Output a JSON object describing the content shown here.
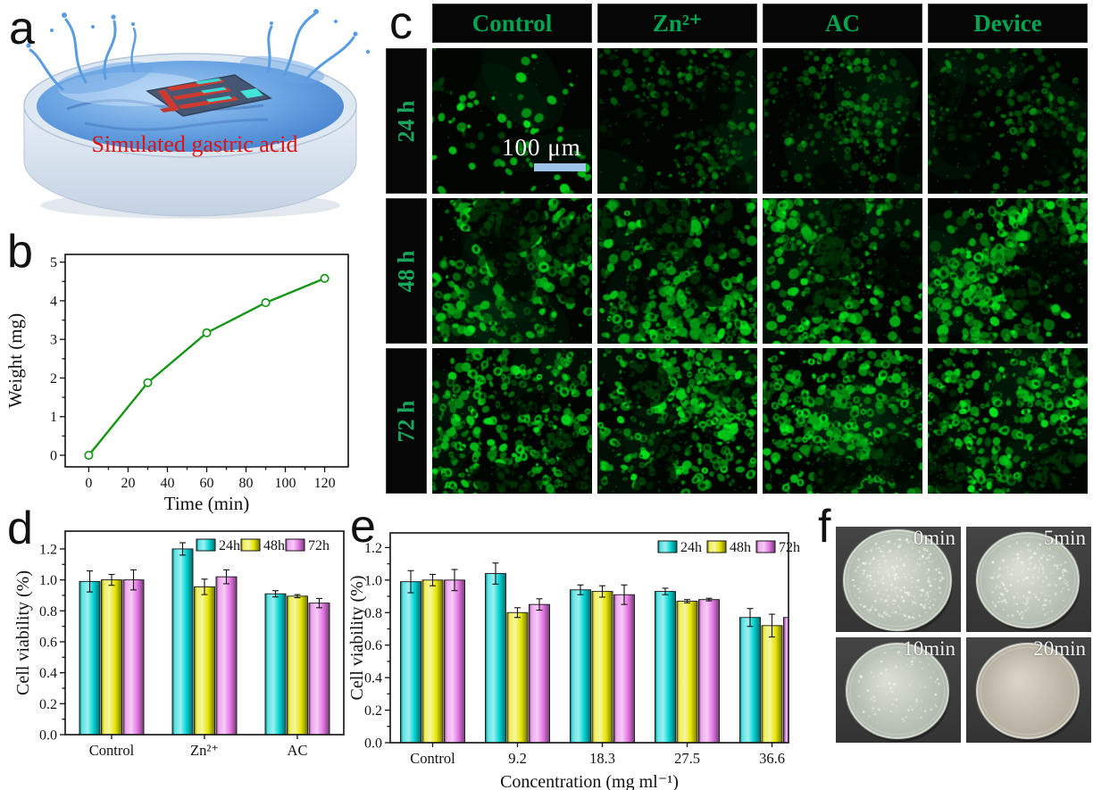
{
  "panels": {
    "a": {
      "label": "a",
      "caption": "Simulated gastric acid"
    },
    "b": {
      "label": "b"
    },
    "c": {
      "label": "c",
      "columns": [
        "Control",
        "Zn²⁺",
        "AC",
        "Device"
      ],
      "rows": [
        "24 h",
        "48 h",
        "72 h"
      ],
      "scale_bar": "100 μm"
    },
    "d": {
      "label": "d"
    },
    "e": {
      "label": "e"
    },
    "f": {
      "label": "f",
      "images": [
        "0min",
        "5min",
        "10min",
        "20min"
      ]
    }
  },
  "chart_data": [
    {
      "id": "b",
      "type": "line",
      "title": "",
      "xlabel": "Time (min)",
      "ylabel": "Weight (mg)",
      "x": [
        0,
        30,
        60,
        90,
        120
      ],
      "y": [
        0,
        1.88,
        3.17,
        3.95,
        4.58
      ],
      "xticks": [
        0,
        20,
        40,
        60,
        80,
        100,
        120
      ],
      "yticks": [
        0,
        1,
        2,
        3,
        4,
        5
      ],
      "xlim": [
        -12,
        132
      ],
      "ylim": [
        -0.3,
        5.2
      ],
      "marker": "open-circle",
      "line_color": "#169616",
      "grid": false
    },
    {
      "id": "d",
      "type": "bar",
      "xlabel": "",
      "ylabel": "Cell viability (%)",
      "categories": [
        "Control",
        "Zn²⁺",
        "AC"
      ],
      "series": [
        {
          "name": "24h",
          "color": "#00d5d5",
          "values": [
            0.99,
            1.2,
            0.91
          ],
          "errors": [
            0.068,
            0.04,
            0.02
          ]
        },
        {
          "name": "48h",
          "color": "#e6e600",
          "values": [
            1.0,
            0.955,
            0.895
          ],
          "errors": [
            0.035,
            0.05,
            0.01
          ]
        },
        {
          "name": "72h",
          "color": "#e678e6",
          "values": [
            1.0,
            1.02,
            0.85
          ],
          "errors": [
            0.065,
            0.045,
            0.03
          ]
        }
      ],
      "yticks": [
        "0.0",
        "0.2",
        "0.4",
        "0.6",
        "0.8",
        "1.0",
        "1.2"
      ],
      "ylim": [
        0,
        1.315
      ],
      "legend": [
        "24h",
        "48h",
        "72h"
      ],
      "legend_position": "top-right",
      "grid": false
    },
    {
      "id": "e",
      "type": "bar",
      "xlabel": "Concentration (mg ml⁻¹)",
      "ylabel": "Cell viability (%)",
      "categories": [
        "Control",
        "9.2",
        "18.3",
        "27.5",
        "36.6"
      ],
      "series": [
        {
          "name": "24h",
          "color": "#00d5d5",
          "values": [
            0.99,
            1.04,
            0.94,
            0.93,
            0.77
          ],
          "errors": [
            0.068,
            0.065,
            0.03,
            0.02,
            0.055
          ]
        },
        {
          "name": "48h",
          "color": "#e6e600",
          "values": [
            1.0,
            0.8,
            0.93,
            0.87,
            0.72
          ],
          "errors": [
            0.035,
            0.03,
            0.035,
            0.01,
            0.07
          ]
        },
        {
          "name": "72h",
          "color": "#e678e6",
          "values": [
            1.0,
            0.85,
            0.91,
            0.88,
            0.77
          ],
          "errors": [
            0.065,
            0.035,
            0.06,
            0.008,
            0.04
          ]
        }
      ],
      "yticks": [
        "0.0",
        "0.2",
        "0.4",
        "0.6",
        "0.8",
        "1.0",
        "1.2"
      ],
      "ylim": [
        0,
        1.29
      ],
      "legend": [
        "24h",
        "48h",
        "72h"
      ],
      "legend_position": "top-right",
      "grid": false
    }
  ],
  "colors": {
    "header_green": "#00a64f",
    "row_label_green": "#17a75c",
    "caption_red": "#dd1414",
    "scalebar_blue": "#9dc3e8",
    "axis": "#111111"
  }
}
